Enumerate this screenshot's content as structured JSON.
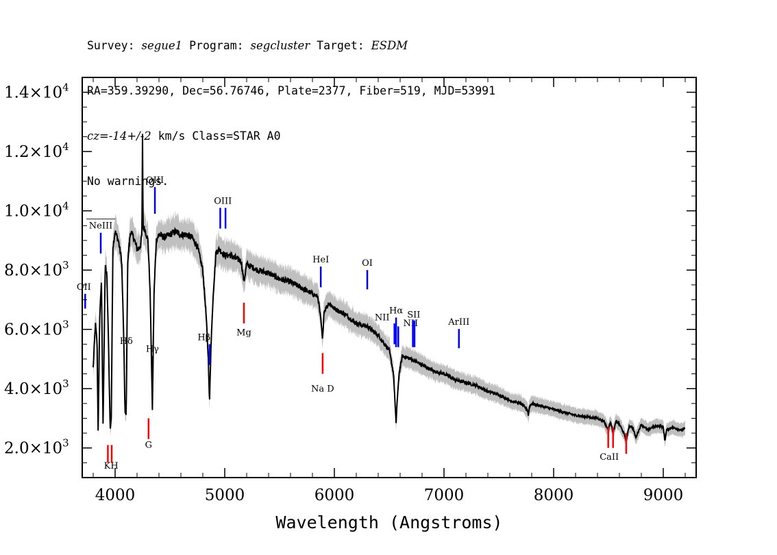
{
  "header": {
    "line1": {
      "survey_label": "Survey: ",
      "survey": "segue1",
      "program_label": " Program: ",
      "program": "segcluster",
      "target_label": " Target: ",
      "target": "ESDM"
    },
    "line2": "RA=359.39290, Dec=56.76746, Plate=2377, Fiber=519, MJD=53991",
    "line3": {
      "cz_label": "cz=",
      "cz_value": "-14+/-2",
      "cz_rest": " km/s Class=STAR A0"
    },
    "line4": "No warnings."
  },
  "chart_data": {
    "type": "line",
    "title": "",
    "xlabel": "Wavelength (Angstroms)",
    "ylabel": "",
    "xlim": [
      3700,
      9300
    ],
    "ylim": [
      1000,
      14500
    ],
    "x_ticks": [
      {
        "value": 4000,
        "label": "4000"
      },
      {
        "value": 5000,
        "label": "5000"
      },
      {
        "value": 6000,
        "label": "6000"
      },
      {
        "value": 7000,
        "label": "7000"
      },
      {
        "value": 8000,
        "label": "8000"
      },
      {
        "value": 9000,
        "label": "9000"
      }
    ],
    "y_ticks": [
      {
        "value": 2000,
        "mant": "2.0×10",
        "exp": "3"
      },
      {
        "value": 4000,
        "mant": "4.0×10",
        "exp": "3"
      },
      {
        "value": 6000,
        "mant": "6.0×10",
        "exp": "3"
      },
      {
        "value": 8000,
        "mant": "8.0×10",
        "exp": "3"
      },
      {
        "value": 10000,
        "mant": "1.0×10",
        "exp": "4"
      },
      {
        "value": 12000,
        "mant": "1.2×10",
        "exp": "4"
      },
      {
        "value": 14000,
        "mant": "1.4×10",
        "exp": "4"
      }
    ],
    "series": [
      {
        "name": "flux",
        "color": "#000000",
        "x": [
          3800,
          3820,
          3835,
          3845,
          3860,
          3875,
          3890,
          3910,
          3925,
          3940,
          3955,
          3965,
          3980,
          4000,
          4030,
          4060,
          4080,
          4090,
          4101,
          4115,
          4140,
          4170,
          4200,
          4230,
          4245,
          4250,
          4255,
          4270,
          4300,
          4320,
          4340,
          4355,
          4375,
          4400,
          4450,
          4500,
          4550,
          4600,
          4650,
          4700,
          4750,
          4800,
          4830,
          4850,
          4861,
          4875,
          4895,
          4920,
          4950,
          5000,
          5050,
          5100,
          5150,
          5175,
          5200,
          5300,
          5400,
          5500,
          5600,
          5700,
          5800,
          5850,
          5880,
          5892,
          5905,
          5950,
          6000,
          6100,
          6200,
          6300,
          6400,
          6500,
          6540,
          6556,
          6563,
          6570,
          6590,
          6620,
          6700,
          6800,
          6900,
          7000,
          7100,
          7200,
          7300,
          7400,
          7500,
          7600,
          7700,
          7760,
          7770,
          7780,
          7800,
          7900,
          8000,
          8100,
          8200,
          8300,
          8400,
          8460,
          8498,
          8520,
          8542,
          8570,
          8600,
          8640,
          8662,
          8690,
          8720,
          8750,
          8800,
          8860,
          8900,
          8950,
          9000,
          9015,
          9030,
          9080,
          9120,
          9170,
          9200
        ],
        "y": [
          4700,
          6200,
          5600,
          2600,
          6500,
          7600,
          2800,
          8200,
          7800,
          5500,
          2600,
          3000,
          8800,
          9300,
          9000,
          8300,
          5500,
          3200,
          3100,
          8300,
          9300,
          9100,
          8700,
          8800,
          9200,
          12500,
          9400,
          9400,
          9000,
          7200,
          3300,
          7200,
          9000,
          9200,
          9100,
          9200,
          9300,
          9200,
          9200,
          9100,
          8800,
          8000,
          6500,
          5000,
          3500,
          5500,
          7200,
          8600,
          8700,
          8500,
          8500,
          8400,
          8300,
          7600,
          8200,
          8000,
          7900,
          7700,
          7600,
          7400,
          7200,
          7100,
          6200,
          5600,
          6600,
          6900,
          6700,
          6500,
          6200,
          6100,
          5800,
          5300,
          4500,
          3300,
          2850,
          3400,
          4500,
          5100,
          5000,
          4800,
          4600,
          4500,
          4300,
          4200,
          4100,
          3900,
          3800,
          3600,
          3500,
          3300,
          3100,
          3400,
          3500,
          3400,
          3300,
          3200,
          3100,
          3050,
          3000,
          2900,
          2600,
          2900,
          2500,
          2900,
          2800,
          2500,
          2250,
          2750,
          2700,
          2350,
          2800,
          2600,
          2700,
          2750,
          2700,
          2250,
          2600,
          2700,
          2650,
          2600,
          2650
        ]
      }
    ],
    "annotations": [
      {
        "label": "OII",
        "wavelength": 3727,
        "color": "#0000ff"
      },
      {
        "label": "NeIII",
        "wavelength": 3869,
        "color": "#0000ff"
      },
      {
        "label": "K",
        "wavelength": 3934,
        "color": "#ff0000"
      },
      {
        "label": "H",
        "wavelength": 3969,
        "color": "#ff0000"
      },
      {
        "label": "Hδ",
        "wavelength": 4102,
        "color": "#000000"
      },
      {
        "label": "Hγ",
        "wavelength": 4340,
        "color": "#000000"
      },
      {
        "label": "G",
        "wavelength": 4305,
        "color": "#ff0000"
      },
      {
        "label": "OIII",
        "wavelength": 4363,
        "color": "#0000ff"
      },
      {
        "label": "Hβ",
        "wavelength": 4861,
        "color": "#0000ff"
      },
      {
        "label": "OIII",
        "wavelength": 4959,
        "color": "#0000ff"
      },
      {
        "label": "OIII",
        "wavelength": 5007,
        "color": "#0000ff"
      },
      {
        "label": "Mg",
        "wavelength": 5175,
        "color": "#ff0000"
      },
      {
        "label": "HeI",
        "wavelength": 5876,
        "color": "#0000ff"
      },
      {
        "label": "Na D",
        "wavelength": 5893,
        "color": "#ff0000"
      },
      {
        "label": "OI",
        "wavelength": 6300,
        "color": "#0000ff"
      },
      {
        "label": "NII",
        "wavelength": 6548,
        "color": "#0000ff"
      },
      {
        "label": "Hα",
        "wavelength": 6563,
        "color": "#0000ff"
      },
      {
        "label": "NII",
        "wavelength": 6583,
        "color": "#0000ff"
      },
      {
        "label": "SII",
        "wavelength": 6716,
        "color": "#0000ff"
      },
      {
        "label": "SII",
        "wavelength": 6731,
        "color": "#0000ff"
      },
      {
        "label": "ArIII",
        "wavelength": 7136,
        "color": "#0000ff"
      },
      {
        "label": "CaII",
        "wavelength": 8498,
        "color": "#ff0000"
      },
      {
        "label": "CaII",
        "wavelength": 8542,
        "color": "#ff0000"
      },
      {
        "label": "CaII",
        "wavelength": 8662,
        "color": "#ff0000"
      }
    ],
    "colors": {
      "spectrum": "#000000",
      "noise_band": "#c0c0c0",
      "emission_marker": "#0000ff",
      "absorption_marker": "#ff0000",
      "balmer_marker": "#000000"
    }
  }
}
